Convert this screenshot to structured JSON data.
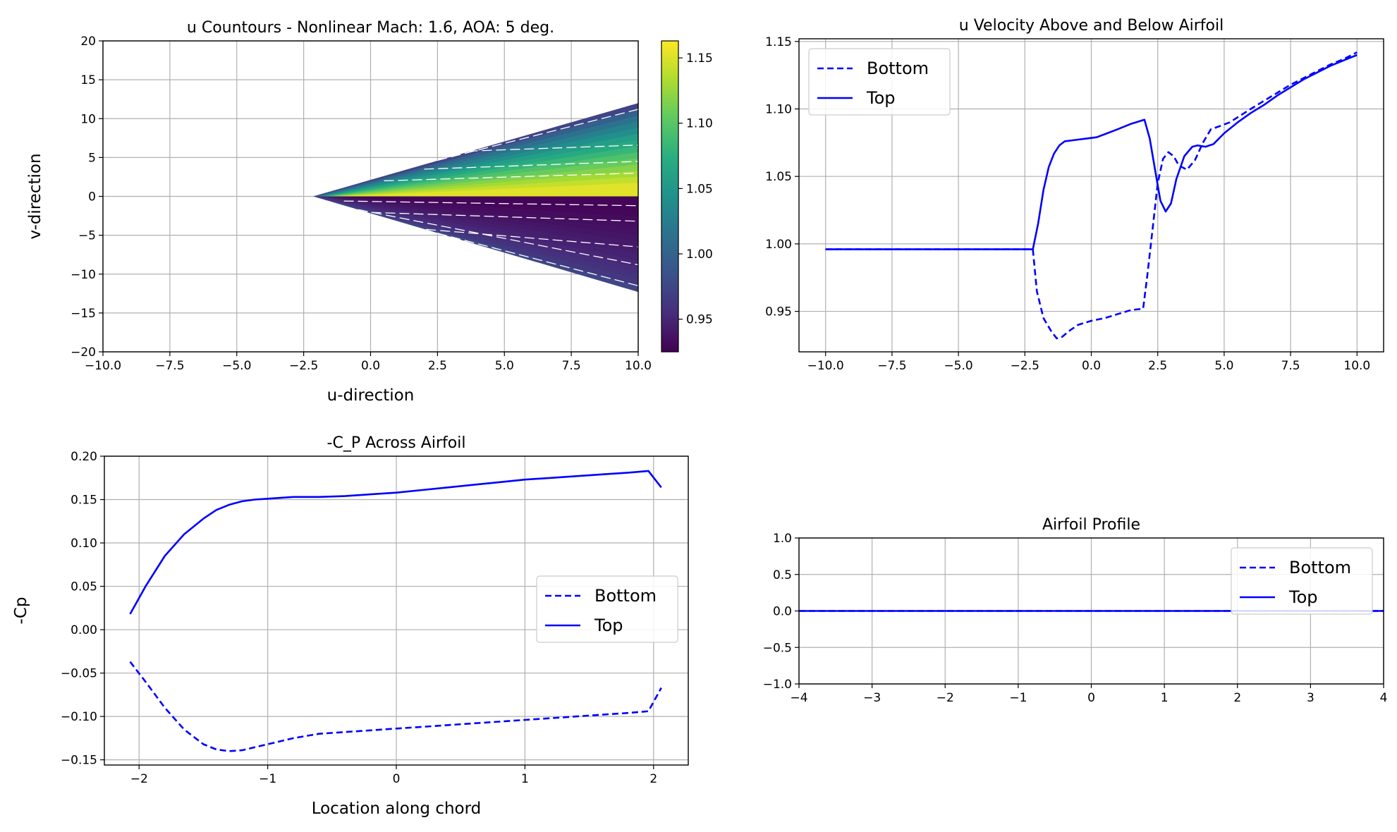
{
  "chart_data": [
    {
      "type": "contour",
      "title": "u Countours - Nonlinear Mach: 1.6, AOA: 5 deg.",
      "xlabel": "u-direction",
      "ylabel": "v-direction",
      "xlim": [
        -10,
        10
      ],
      "ylim": [
        -20,
        20
      ],
      "xticks": [
        "−10.0",
        "−7.5",
        "−5.0",
        "−2.5",
        "0.0",
        "2.5",
        "5.0",
        "7.5",
        "10.0"
      ],
      "yticks": [
        "−20",
        "−15",
        "−10",
        "−5",
        "0",
        "5",
        "10",
        "15",
        "20"
      ],
      "grid": true,
      "colormap": "viridis",
      "colorbar": {
        "range": [
          0.925,
          1.163
        ],
        "ticks": [
          "0.95",
          "1.00",
          "1.05",
          "1.10",
          "1.15"
        ],
        "tick_values": [
          0.95,
          1.0,
          1.05,
          1.1,
          1.15
        ]
      },
      "cone": {
        "apex_x": -2.15,
        "apex_y": 0,
        "upper_edge_y_at_x10": 12.0,
        "lower_edge_y_at_x10": -12.3,
        "max_value": 1.163,
        "min_value": 0.925
      }
    },
    {
      "type": "line",
      "title": "u Velocity Above and Below Airfoil",
      "xlim": [
        -11,
        11
      ],
      "ylim": [
        0.92,
        1.152
      ],
      "xticks": [
        "−10.0",
        "−7.5",
        "−5.0",
        "−2.5",
        "0.0",
        "2.5",
        "5.0",
        "7.5",
        "10.0"
      ],
      "yticks": [
        "0.95",
        "1.00",
        "1.05",
        "1.10",
        "1.15"
      ],
      "grid": true,
      "legend": "top-left",
      "series": [
        {
          "name": "Bottom",
          "style": "dashed",
          "color": "#0000ff",
          "x": [
            -10,
            -2.2,
            -2.05,
            -1.8,
            -1.5,
            -1.3,
            -1.1,
            -0.8,
            -0.5,
            0,
            0.5,
            1.0,
            1.5,
            1.95,
            2.1,
            2.3,
            2.5,
            2.7,
            2.9,
            3.1,
            3.3,
            3.6,
            3.9,
            4.2,
            4.5,
            4.8,
            5.2,
            5.6,
            6.0,
            6.5,
            7.0,
            7.5,
            8.0,
            8.5,
            9.0,
            9.5,
            10.0
          ],
          "y": [
            0.996,
            0.996,
            0.965,
            0.945,
            0.935,
            0.93,
            0.931,
            0.936,
            0.94,
            0.943,
            0.945,
            0.948,
            0.951,
            0.952,
            0.975,
            1.01,
            1.045,
            1.063,
            1.068,
            1.065,
            1.058,
            1.055,
            1.062,
            1.075,
            1.085,
            1.087,
            1.09,
            1.095,
            1.1,
            1.106,
            1.112,
            1.118,
            1.123,
            1.128,
            1.133,
            1.137,
            1.142
          ]
        },
        {
          "name": "Top",
          "style": "solid",
          "color": "#0000ff",
          "x": [
            -10,
            -2.2,
            -2.0,
            -1.8,
            -1.6,
            -1.4,
            -1.2,
            -1.0,
            -0.6,
            -0.2,
            0.2,
            0.6,
            1.0,
            1.5,
            2.0,
            2.2,
            2.4,
            2.6,
            2.8,
            3.0,
            3.2,
            3.5,
            3.8,
            4.0,
            4.3,
            4.6,
            5.0,
            5.5,
            6.0,
            6.5,
            7.0,
            7.5,
            8.0,
            8.5,
            9.0,
            9.5,
            10.0
          ],
          "y": [
            0.996,
            0.996,
            1.015,
            1.04,
            1.057,
            1.067,
            1.073,
            1.076,
            1.077,
            1.078,
            1.079,
            1.082,
            1.085,
            1.089,
            1.092,
            1.078,
            1.055,
            1.032,
            1.024,
            1.03,
            1.048,
            1.065,
            1.072,
            1.073,
            1.072,
            1.074,
            1.082,
            1.09,
            1.097,
            1.103,
            1.11,
            1.116,
            1.122,
            1.127,
            1.132,
            1.136,
            1.14
          ]
        }
      ]
    },
    {
      "type": "line",
      "title": "-C_P Across Airfoil",
      "xlabel": "Location along chord",
      "ylabel": "-Cp",
      "xlim": [
        -2.27,
        2.27
      ],
      "ylim": [
        -0.156,
        0.2
      ],
      "xticks": [
        "−2",
        "−1",
        "0",
        "1",
        "2"
      ],
      "yticks": [
        "−0.15",
        "−0.10",
        "−0.05",
        "0.00",
        "0.05",
        "0.10",
        "0.15",
        "0.20"
      ],
      "grid": true,
      "legend": "center-right",
      "series": [
        {
          "name": "Bottom",
          "style": "dashed",
          "color": "#0000ff",
          "x": [
            -2.07,
            -1.95,
            -1.8,
            -1.65,
            -1.5,
            -1.4,
            -1.3,
            -1.2,
            -1.0,
            -0.8,
            -0.6,
            -0.4,
            -0.2,
            0,
            0.2,
            0.4,
            0.6,
            0.8,
            1.0,
            1.2,
            1.4,
            1.6,
            1.8,
            1.96,
            2.06
          ],
          "y": [
            -0.037,
            -0.06,
            -0.09,
            -0.115,
            -0.132,
            -0.138,
            -0.14,
            -0.139,
            -0.132,
            -0.125,
            -0.12,
            -0.118,
            -0.116,
            -0.114,
            -0.112,
            -0.11,
            -0.108,
            -0.106,
            -0.104,
            -0.102,
            -0.1,
            -0.098,
            -0.096,
            -0.094,
            -0.067
          ]
        },
        {
          "name": "Top",
          "style": "solid",
          "color": "#0000ff",
          "x": [
            -2.07,
            -1.95,
            -1.8,
            -1.65,
            -1.5,
            -1.4,
            -1.3,
            -1.2,
            -1.1,
            -1.0,
            -0.8,
            -0.6,
            -0.4,
            -0.2,
            0,
            0.2,
            0.4,
            0.6,
            0.8,
            1.0,
            1.2,
            1.4,
            1.6,
            1.8,
            1.96,
            2.06
          ],
          "y": [
            0.018,
            0.05,
            0.085,
            0.11,
            0.128,
            0.138,
            0.144,
            0.148,
            0.15,
            0.151,
            0.153,
            0.153,
            0.154,
            0.156,
            0.158,
            0.161,
            0.164,
            0.167,
            0.17,
            0.173,
            0.175,
            0.177,
            0.179,
            0.181,
            0.183,
            0.164
          ]
        }
      ]
    },
    {
      "type": "line",
      "title": "Airfoil Profile",
      "xlim": [
        -4,
        4
      ],
      "ylim": [
        -1,
        1
      ],
      "xticks": [
        "−4",
        "−3",
        "−2",
        "−1",
        "0",
        "1",
        "2",
        "3",
        "4"
      ],
      "yticks": [
        "−1.0",
        "−0.5",
        "0.0",
        "0.5",
        "1.0"
      ],
      "grid": true,
      "legend": "top-right",
      "series": [
        {
          "name": "Bottom",
          "style": "dashed",
          "color": "#0000ff",
          "x": [
            -4,
            4
          ],
          "y": [
            0,
            0
          ]
        },
        {
          "name": "Top",
          "style": "solid",
          "color": "#0000ff",
          "x": [
            -4,
            4
          ],
          "y": [
            0,
            0
          ]
        }
      ]
    }
  ]
}
